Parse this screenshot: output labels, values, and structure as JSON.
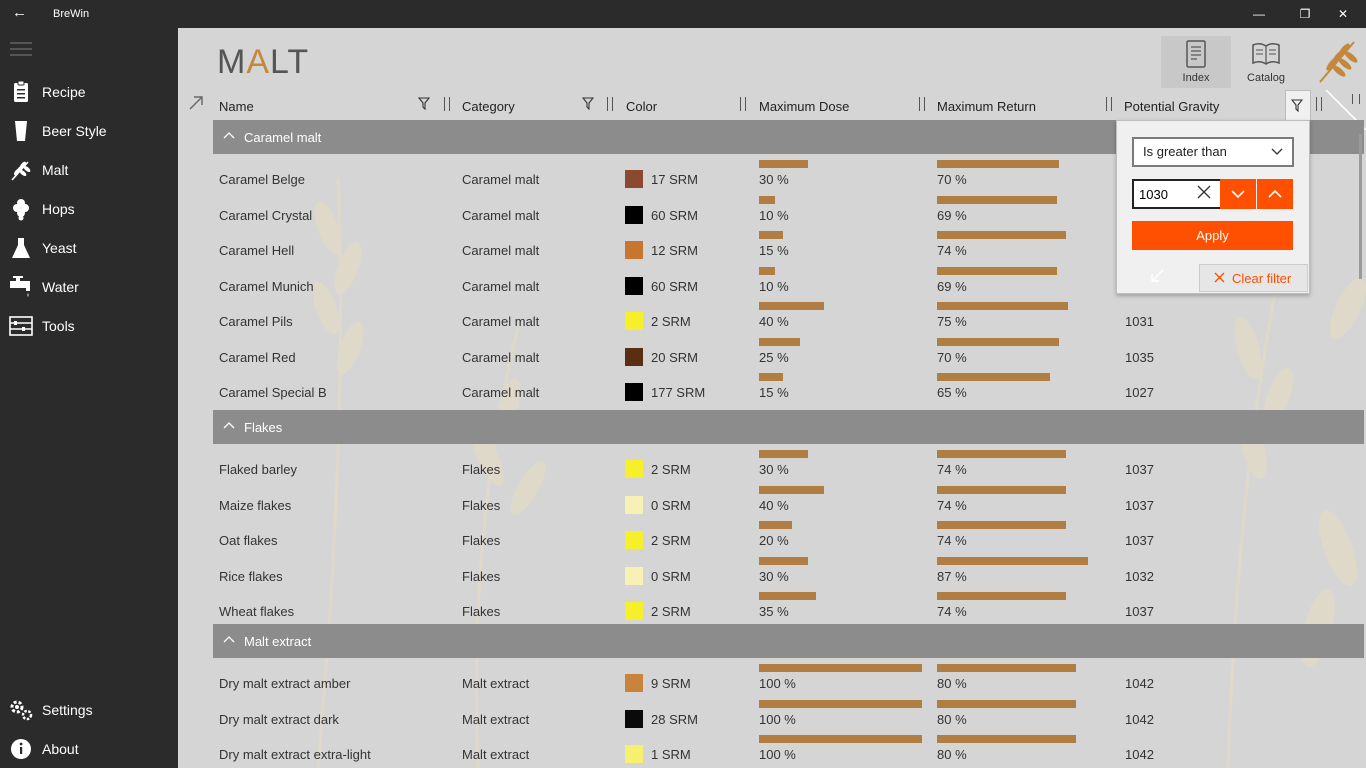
{
  "window": {
    "title": "BreWin",
    "back_glyph": "←",
    "minimize_glyph": "—",
    "maximize_glyph": "❐",
    "close_glyph": "✕"
  },
  "sidebar": {
    "items": [
      {
        "label": "Recipe",
        "icon": "clipboard-icon"
      },
      {
        "label": "Beer Style",
        "icon": "beer-glass-icon"
      },
      {
        "label": "Malt",
        "icon": "wheat-icon"
      },
      {
        "label": "Hops",
        "icon": "hops-icon"
      },
      {
        "label": "Yeast",
        "icon": "flask-icon"
      },
      {
        "label": "Water",
        "icon": "faucet-icon"
      },
      {
        "label": "Tools",
        "icon": "tools-icon"
      }
    ],
    "footer": [
      {
        "label": "Settings",
        "icon": "gear-icon"
      },
      {
        "label": "About",
        "icon": "info-icon"
      }
    ]
  },
  "page": {
    "title_before": "M",
    "title_accent": "A",
    "title_after": "LT"
  },
  "toolbar": {
    "index_label": "Index",
    "catalog_label": "Catalog"
  },
  "columns": [
    "Name",
    "Category",
    "Color",
    "Maximum Dose",
    "Maximum Return",
    "Potential Gravity"
  ],
  "filter": {
    "operator": "Is greater than",
    "value": "1030",
    "apply_label": "Apply",
    "clear_label": "Clear filter"
  },
  "groups": [
    {
      "name": "Caramel malt",
      "rows": [
        {
          "name": "Caramel Belge",
          "category": "Caramel malt",
          "color": "#8b4a2f",
          "srm": "17 SRM",
          "dose": "30 %",
          "dose_value": 30,
          "ret": "70 %",
          "ret_value": 70,
          "gravity": ""
        },
        {
          "name": "Caramel Crystal",
          "category": "Caramel malt",
          "color": "#000000",
          "srm": "60 SRM",
          "dose": "10 %",
          "dose_value": 10,
          "ret": "69 %",
          "ret_value": 69,
          "gravity": ""
        },
        {
          "name": "Caramel Hell",
          "category": "Caramel malt",
          "color": "#c8752f",
          "srm": "12 SRM",
          "dose": "15 %",
          "dose_value": 15,
          "ret": "74 %",
          "ret_value": 74,
          "gravity": ""
        },
        {
          "name": "Caramel Munich",
          "category": "Caramel malt",
          "color": "#000000",
          "srm": "60 SRM",
          "dose": "10 %",
          "dose_value": 10,
          "ret": "69 %",
          "ret_value": 69,
          "gravity": ""
        },
        {
          "name": "Caramel Pils",
          "category": "Caramel malt",
          "color": "#f5f02a",
          "srm": "2 SRM",
          "dose": "40 %",
          "dose_value": 40,
          "ret": "75 %",
          "ret_value": 75,
          "gravity": "1031"
        },
        {
          "name": "Caramel Red",
          "category": "Caramel malt",
          "color": "#5a2e10",
          "srm": "20 SRM",
          "dose": "25 %",
          "dose_value": 25,
          "ret": "70 %",
          "ret_value": 70,
          "gravity": "1035"
        },
        {
          "name": "Caramel Special B",
          "category": "Caramel malt",
          "color": "#000000",
          "srm": "177 SRM",
          "dose": "15 %",
          "dose_value": 15,
          "ret": "65 %",
          "ret_value": 65,
          "gravity": "1027"
        }
      ]
    },
    {
      "name": "Flakes",
      "rows": [
        {
          "name": "Flaked barley",
          "category": "Flakes",
          "color": "#f5f02a",
          "srm": "2 SRM",
          "dose": "30 %",
          "dose_value": 30,
          "ret": "74 %",
          "ret_value": 74,
          "gravity": "1037"
        },
        {
          "name": "Maize flakes",
          "category": "Flakes",
          "color": "#f7f1b5",
          "srm": "0 SRM",
          "dose": "40 %",
          "dose_value": 40,
          "ret": "74 %",
          "ret_value": 74,
          "gravity": "1037"
        },
        {
          "name": "Oat flakes",
          "category": "Flakes",
          "color": "#f5f02a",
          "srm": "2 SRM",
          "dose": "20 %",
          "dose_value": 20,
          "ret": "74 %",
          "ret_value": 74,
          "gravity": "1037"
        },
        {
          "name": "Rice flakes",
          "category": "Flakes",
          "color": "#f7f1b5",
          "srm": "0 SRM",
          "dose": "30 %",
          "dose_value": 30,
          "ret": "87 %",
          "ret_value": 87,
          "gravity": "1032"
        },
        {
          "name": "Wheat flakes",
          "category": "Flakes",
          "color": "#f5f02a",
          "srm": "2 SRM",
          "dose": "35 %",
          "dose_value": 35,
          "ret": "74 %",
          "ret_value": 74,
          "gravity": "1037"
        }
      ]
    },
    {
      "name": "Malt extract",
      "rows": [
        {
          "name": "Dry malt extract amber",
          "category": "Malt extract",
          "color": "#c8843a",
          "srm": "9 SRM",
          "dose": "100 %",
          "dose_value": 100,
          "ret": "80 %",
          "ret_value": 80,
          "gravity": "1042"
        },
        {
          "name": "Dry malt extract dark",
          "category": "Malt extract",
          "color": "#0a0a0a",
          "srm": "28 SRM",
          "dose": "100 %",
          "dose_value": 100,
          "ret": "80 %",
          "ret_value": 80,
          "gravity": "1042"
        },
        {
          "name": "Dry malt extract extra-light",
          "category": "Malt extract",
          "color": "#f5f070",
          "srm": "1 SRM",
          "dose": "100 %",
          "dose_value": 100,
          "ret": "80 %",
          "ret_value": 80,
          "gravity": "1042"
        }
      ]
    }
  ],
  "colors": {
    "accent": "#ff4f00",
    "bar": "#b07d42",
    "title_accent": "#c4883c",
    "group_header": "#8c8c8c"
  }
}
